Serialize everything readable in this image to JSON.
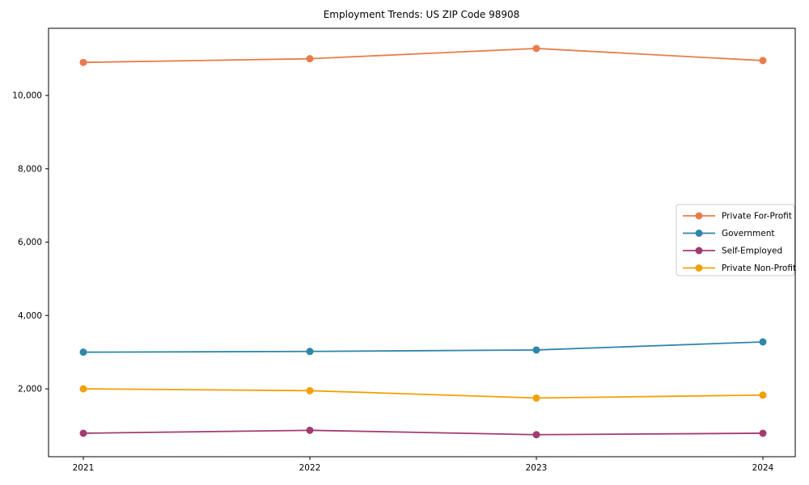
{
  "title": "Employment Trends: US ZIP Code 98908",
  "chart_data": {
    "type": "line",
    "x": [
      2021,
      2022,
      2023,
      2024
    ],
    "xtick_labels": [
      "2021",
      "2022",
      "2023",
      "2024"
    ],
    "yticks": [
      2000,
      4000,
      6000,
      8000,
      10000
    ],
    "ytick_labels": [
      "2,000",
      "4,000",
      "6,000",
      "8,000",
      "10,000"
    ],
    "ylim": [
      150,
      11830
    ],
    "grid": false,
    "legend_position": "center-right",
    "xlabel": "",
    "ylabel": "",
    "series": [
      {
        "name": "Private For-Profit",
        "color": "#E87D4B",
        "values": [
          10900,
          11000,
          11280,
          10950
        ]
      },
      {
        "name": "Government",
        "color": "#2E86AB",
        "values": [
          3000,
          3020,
          3060,
          3280
        ]
      },
      {
        "name": "Self-Employed",
        "color": "#A23B72",
        "values": [
          790,
          870,
          750,
          790
        ]
      },
      {
        "name": "Private Non-Profit",
        "color": "#F2A007",
        "values": [
          2000,
          1950,
          1750,
          1830
        ]
      }
    ],
    "legend_labels": [
      "Private For-Profit",
      "Government",
      "Self-Employed",
      "Private Non-Profit"
    ]
  }
}
